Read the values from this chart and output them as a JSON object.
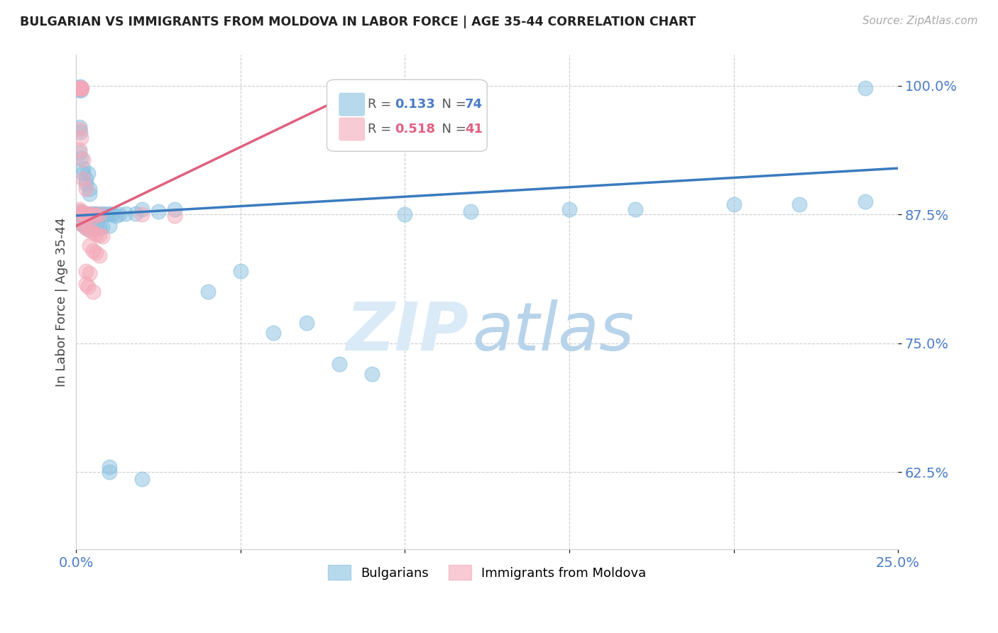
{
  "title": "BULGARIAN VS IMMIGRANTS FROM MOLDOVA IN LABOR FORCE | AGE 35-44 CORRELATION CHART",
  "source": "Source: ZipAtlas.com",
  "ylabel": "In Labor Force | Age 35-44",
  "xlim": [
    0.0,
    0.25
  ],
  "ylim": [
    0.55,
    1.03
  ],
  "yticks": [
    0.625,
    0.75,
    0.875,
    1.0
  ],
  "ytick_labels": [
    "62.5%",
    "75.0%",
    "87.5%",
    "100.0%"
  ],
  "xticks": [
    0.0,
    0.05,
    0.1,
    0.15,
    0.2,
    0.25
  ],
  "xtick_labels": [
    "0.0%",
    "",
    "",
    "",
    "",
    "25.0%"
  ],
  "blue_R": 0.133,
  "blue_N": 74,
  "pink_R": 0.518,
  "pink_N": 41,
  "blue_color": "#88c0e0",
  "pink_color": "#f4a8b8",
  "blue_line_color": "#3a7bbf",
  "pink_line_color": "#e06080",
  "legend_blue": "Bulgarians",
  "legend_pink": "Immigrants from Moldova",
  "watermark_zip": "ZIP",
  "watermark_atlas": "atlas",
  "background_color": "#ffffff",
  "blue_line_x": [
    0.0,
    0.25
  ],
  "blue_line_y": [
    0.874,
    0.92
  ],
  "pink_line_x": [
    0.0,
    0.09
  ],
  "pink_line_y": [
    0.864,
    1.002
  ],
  "blue_dots": [
    [
      0.0008,
      0.998
    ],
    [
      0.001,
      0.996
    ],
    [
      0.001,
      0.998
    ],
    [
      0.0012,
      0.999
    ],
    [
      0.0013,
      0.998
    ],
    [
      0.0014,
      0.997
    ],
    [
      0.0015,
      0.996
    ],
    [
      0.001,
      0.96
    ],
    [
      0.0012,
      0.955
    ],
    [
      0.001,
      0.935
    ],
    [
      0.0015,
      0.93
    ],
    [
      0.002,
      0.92
    ],
    [
      0.002,
      0.915
    ],
    [
      0.003,
      0.91
    ],
    [
      0.003,
      0.905
    ],
    [
      0.0035,
      0.915
    ],
    [
      0.004,
      0.9
    ],
    [
      0.004,
      0.895
    ],
    [
      0.001,
      0.878
    ],
    [
      0.0015,
      0.877
    ],
    [
      0.002,
      0.876
    ],
    [
      0.0025,
      0.876
    ],
    [
      0.003,
      0.875
    ],
    [
      0.003,
      0.876
    ],
    [
      0.0035,
      0.875
    ],
    [
      0.004,
      0.875
    ],
    [
      0.004,
      0.874
    ],
    [
      0.0045,
      0.876
    ],
    [
      0.005,
      0.875
    ],
    [
      0.005,
      0.874
    ],
    [
      0.0055,
      0.875
    ],
    [
      0.006,
      0.875
    ],
    [
      0.006,
      0.876
    ],
    [
      0.007,
      0.875
    ],
    [
      0.007,
      0.874
    ],
    [
      0.008,
      0.876
    ],
    [
      0.009,
      0.875
    ],
    [
      0.01,
      0.876
    ],
    [
      0.011,
      0.875
    ],
    [
      0.012,
      0.874
    ],
    [
      0.013,
      0.875
    ],
    [
      0.0005,
      0.87
    ],
    [
      0.001,
      0.868
    ],
    [
      0.0015,
      0.866
    ],
    [
      0.002,
      0.865
    ],
    [
      0.003,
      0.862
    ],
    [
      0.004,
      0.86
    ],
    [
      0.005,
      0.862
    ],
    [
      0.006,
      0.863
    ],
    [
      0.007,
      0.862
    ],
    [
      0.008,
      0.863
    ],
    [
      0.01,
      0.864
    ],
    [
      0.015,
      0.876
    ],
    [
      0.02,
      0.88
    ],
    [
      0.025,
      0.878
    ],
    [
      0.03,
      0.88
    ],
    [
      0.04,
      0.8
    ],
    [
      0.05,
      0.82
    ],
    [
      0.06,
      0.76
    ],
    [
      0.07,
      0.77
    ],
    [
      0.08,
      0.73
    ],
    [
      0.09,
      0.72
    ],
    [
      0.018,
      0.876
    ],
    [
      0.1,
      0.875
    ],
    [
      0.12,
      0.878
    ],
    [
      0.15,
      0.88
    ],
    [
      0.17,
      0.88
    ],
    [
      0.2,
      0.885
    ],
    [
      0.22,
      0.885
    ],
    [
      0.24,
      0.888
    ],
    [
      0.24,
      0.998
    ],
    [
      0.01,
      0.63
    ],
    [
      0.01,
      0.625
    ],
    [
      0.02,
      0.618
    ]
  ],
  "pink_dots": [
    [
      0.001,
      0.998
    ],
    [
      0.0012,
      0.998
    ],
    [
      0.0013,
      0.997
    ],
    [
      0.0014,
      0.998
    ],
    [
      0.0015,
      0.997
    ],
    [
      0.0016,
      0.998
    ],
    [
      0.001,
      0.958
    ],
    [
      0.0015,
      0.95
    ],
    [
      0.001,
      0.938
    ],
    [
      0.002,
      0.928
    ],
    [
      0.002,
      0.91
    ],
    [
      0.003,
      0.9
    ],
    [
      0.001,
      0.88
    ],
    [
      0.0015,
      0.878
    ],
    [
      0.002,
      0.877
    ],
    [
      0.0025,
      0.876
    ],
    [
      0.003,
      0.876
    ],
    [
      0.0035,
      0.875
    ],
    [
      0.004,
      0.875
    ],
    [
      0.005,
      0.875
    ],
    [
      0.006,
      0.874
    ],
    [
      0.007,
      0.875
    ],
    [
      0.001,
      0.868
    ],
    [
      0.002,
      0.865
    ],
    [
      0.003,
      0.862
    ],
    [
      0.004,
      0.86
    ],
    [
      0.005,
      0.858
    ],
    [
      0.006,
      0.856
    ],
    [
      0.007,
      0.855
    ],
    [
      0.008,
      0.854
    ],
    [
      0.004,
      0.845
    ],
    [
      0.005,
      0.84
    ],
    [
      0.006,
      0.838
    ],
    [
      0.007,
      0.835
    ],
    [
      0.003,
      0.82
    ],
    [
      0.004,
      0.818
    ],
    [
      0.003,
      0.808
    ],
    [
      0.0035,
      0.805
    ],
    [
      0.005,
      0.8
    ],
    [
      0.02,
      0.875
    ],
    [
      0.03,
      0.874
    ]
  ]
}
